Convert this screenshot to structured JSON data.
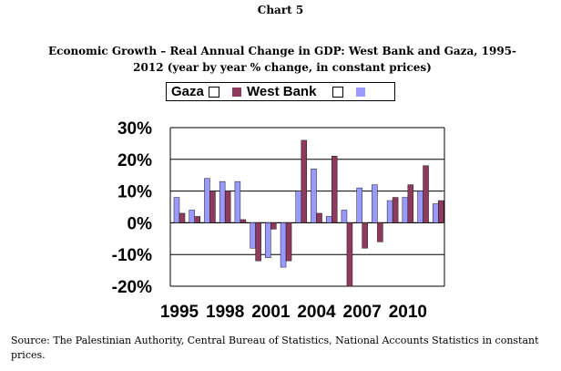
{
  "header": {
    "chart_label": "Chart 5",
    "title": "Economic Growth – Real Annual Change in GDP: West Bank and Gaza, 1995-2012 (year by year % change, in constant prices)"
  },
  "legend": {
    "items": [
      {
        "label": "Gaza",
        "color": "#8e3a5c"
      },
      {
        "label": "West Bank",
        "color": "#9999ff"
      }
    ]
  },
  "source": "Source: The Palestinian Authority, Central Bureau of Statistics, National Accounts Statistics in constant prices.",
  "chart_data": {
    "type": "bar",
    "title": "Economic Growth – Real Annual Change in GDP: West Bank and Gaza, 1995-2012",
    "categories": [
      "1995",
      "1996",
      "1997",
      "1998",
      "1999",
      "2000",
      "2001",
      "2002",
      "2003",
      "2004",
      "2005",
      "2006",
      "2007",
      "2008",
      "2009",
      "2010",
      "2011",
      "2012"
    ],
    "x_tick_labels": [
      "1995",
      "1998",
      "2001",
      "2004",
      "2007",
      "2010"
    ],
    "y_tick_labels": [
      "30%",
      "20%",
      "10%",
      "0%",
      "-10%",
      "-20%"
    ],
    "ylim": [
      -20,
      30
    ],
    "y_ticks": [
      30,
      20,
      10,
      0,
      -10,
      -20
    ],
    "grid": true,
    "xlabel": "",
    "ylabel": "",
    "series": [
      {
        "name": "West Bank",
        "color": "#9999ff",
        "values": [
          8,
          4,
          14,
          13,
          13,
          -8,
          -11,
          -14,
          10,
          17,
          2,
          4,
          11,
          12,
          7,
          8,
          10,
          6
        ]
      },
      {
        "name": "Gaza",
        "color": "#8e3a5c",
        "values": [
          3,
          2,
          10,
          10,
          1,
          -12,
          -2,
          -12,
          26,
          3,
          21,
          -20,
          -8,
          -6,
          8,
          12,
          18,
          7
        ]
      }
    ]
  }
}
